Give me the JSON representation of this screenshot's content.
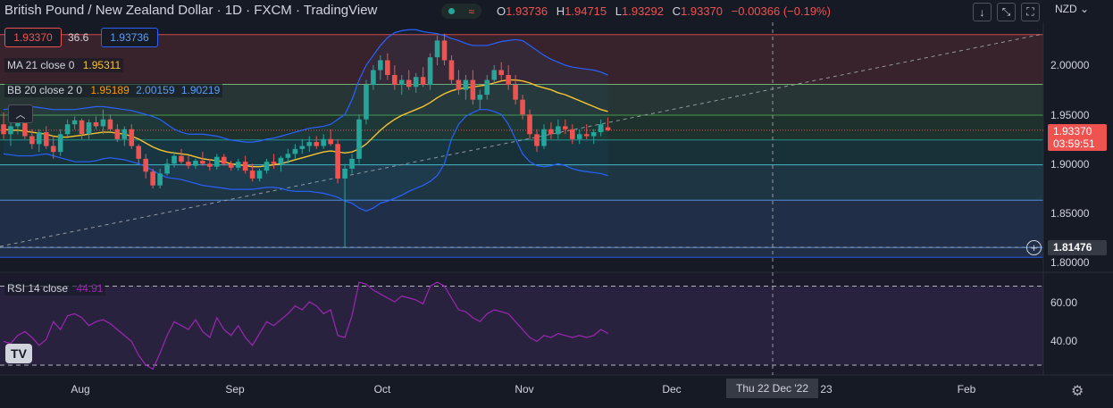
{
  "header": {
    "title": "British Pound / New Zealand Dollar · 1D · FXCM · TradingView",
    "ohlc": {
      "o_label": "O",
      "o": "1.93736",
      "h_label": "H",
      "h": "1.94715",
      "l_label": "L",
      "l": "1.93292",
      "c_label": "C",
      "c": "1.93370",
      "change": "−0.00366 (−0.19%)"
    },
    "currency": "NZD",
    "status_icons": [
      "market-open-dot-icon",
      "wave-icon"
    ],
    "toolbar_icons": [
      "arrow-down-icon",
      "collapse-icon",
      "fullscreen-icon"
    ]
  },
  "quote": {
    "sell": "1.93370",
    "spread": "36.6",
    "buy": "1.93736"
  },
  "indicators": {
    "ma": {
      "label": "MA 21 close 0",
      "value": "1.95311"
    },
    "bb": {
      "label": "BB 20 close 2 0",
      "basis": "1.95189",
      "upper": "2.00159",
      "lower": "1.90219"
    },
    "rsi": {
      "label": "RSI 14 close",
      "value": "44.91"
    }
  },
  "price_axis": [
    "2.00000",
    "1.95000",
    "1.90000",
    "1.85000",
    "1.80000"
  ],
  "rsi_axis": [
    "60.00",
    "40.00"
  ],
  "price_tags": {
    "last": "1.93370",
    "countdown": "03:59:51",
    "crosshair": "1.81476"
  },
  "time_axis": [
    "Aug",
    "Sep",
    "Oct",
    "Nov",
    "Dec",
    "23",
    "Feb"
  ],
  "crosshair_date": "Thu 22 Dec '22",
  "logo_text": "TV",
  "colors": {
    "up": "#26a69a",
    "down": "#ef5350",
    "ma": "#f5c433",
    "bb_band": "#2962ff",
    "rsi": "#9c27b0",
    "background": "#161a25"
  },
  "chart_data": {
    "type": "candlestick",
    "title": "British Pound / New Zealand Dollar",
    "ylim": [
      1.79,
      2.04
    ],
    "candles": [
      [
        1.94,
        1.952,
        1.925,
        1.93
      ],
      [
        1.93,
        1.945,
        1.918,
        1.938
      ],
      [
        1.938,
        1.948,
        1.93,
        1.942
      ],
      [
        1.942,
        1.95,
        1.925,
        1.928
      ],
      [
        1.928,
        1.935,
        1.915,
        1.92
      ],
      [
        1.92,
        1.935,
        1.912,
        1.932
      ],
      [
        1.932,
        1.938,
        1.915,
        1.918
      ],
      [
        1.918,
        1.928,
        1.905,
        1.912
      ],
      [
        1.912,
        1.935,
        1.908,
        1.93
      ],
      [
        1.93,
        1.945,
        1.928,
        1.94
      ],
      [
        1.94,
        1.948,
        1.935,
        1.944
      ],
      [
        1.944,
        1.946,
        1.925,
        1.93
      ],
      [
        1.93,
        1.945,
        1.925,
        1.942
      ],
      [
        1.942,
        1.948,
        1.935,
        1.938
      ],
      [
        1.938,
        1.955,
        1.93,
        1.945
      ],
      [
        1.945,
        1.95,
        1.932,
        1.935
      ],
      [
        1.935,
        1.94,
        1.922,
        1.925
      ],
      [
        1.925,
        1.938,
        1.918,
        1.935
      ],
      [
        1.935,
        1.94,
        1.915,
        1.918
      ],
      [
        1.918,
        1.92,
        1.9,
        1.905
      ],
      [
        1.905,
        1.91,
        1.885,
        1.892
      ],
      [
        1.892,
        1.895,
        1.875,
        1.878
      ],
      [
        1.878,
        1.895,
        1.875,
        1.89
      ],
      [
        1.89,
        1.905,
        1.888,
        1.9
      ],
      [
        1.9,
        1.912,
        1.896,
        1.908
      ],
      [
        1.908,
        1.915,
        1.9,
        1.902
      ],
      [
        1.902,
        1.908,
        1.895,
        1.898
      ],
      [
        1.898,
        1.905,
        1.895,
        1.903
      ],
      [
        1.903,
        1.912,
        1.898,
        1.9
      ],
      [
        1.9,
        1.905,
        1.893,
        1.897
      ],
      [
        1.897,
        1.91,
        1.894,
        1.907
      ],
      [
        1.907,
        1.91,
        1.898,
        1.9
      ],
      [
        1.9,
        1.903,
        1.893,
        1.896
      ],
      [
        1.896,
        1.905,
        1.893,
        1.902
      ],
      [
        1.902,
        1.908,
        1.89,
        1.893
      ],
      [
        1.893,
        1.9,
        1.882,
        1.885
      ],
      [
        1.885,
        1.895,
        1.882,
        1.893
      ],
      [
        1.893,
        1.905,
        1.89,
        1.902
      ],
      [
        1.902,
        1.91,
        1.895,
        1.9
      ],
      [
        1.9,
        1.908,
        1.892,
        1.906
      ],
      [
        1.906,
        1.915,
        1.9,
        1.91
      ],
      [
        1.91,
        1.92,
        1.905,
        1.915
      ],
      [
        1.915,
        1.925,
        1.91,
        1.918
      ],
      [
        1.918,
        1.928,
        1.912,
        1.922
      ],
      [
        1.922,
        1.928,
        1.915,
        1.918
      ],
      [
        1.918,
        1.93,
        1.915,
        1.925
      ],
      [
        1.925,
        1.935,
        1.918,
        1.92
      ],
      [
        1.92,
        1.925,
        1.88,
        1.885
      ],
      [
        1.885,
        1.9,
        1.815,
        1.895
      ],
      [
        1.895,
        1.91,
        1.89,
        1.905
      ],
      [
        1.905,
        1.95,
        1.9,
        1.945
      ],
      [
        1.945,
        1.985,
        1.94,
        1.98
      ],
      [
        1.98,
        2.0,
        1.975,
        1.995
      ],
      [
        1.995,
        2.01,
        1.985,
        2.005
      ],
      [
        2.005,
        2.012,
        1.985,
        1.99
      ],
      [
        1.99,
        2.0,
        1.975,
        1.98
      ],
      [
        1.98,
        1.99,
        1.97,
        1.985
      ],
      [
        1.985,
        1.995,
        1.975,
        1.978
      ],
      [
        1.978,
        1.992,
        1.972,
        1.988
      ],
      [
        1.988,
        1.998,
        1.978,
        1.98
      ],
      [
        1.98,
        2.012,
        1.975,
        2.008
      ],
      [
        2.008,
        2.03,
        2.0,
        2.025
      ],
      [
        2.025,
        2.032,
        2.0,
        2.005
      ],
      [
        2.005,
        2.01,
        1.98,
        1.985
      ],
      [
        1.985,
        1.995,
        1.97,
        1.975
      ],
      [
        1.975,
        1.99,
        1.965,
        1.985
      ],
      [
        1.985,
        1.995,
        1.96,
        1.965
      ],
      [
        1.965,
        1.975,
        1.955,
        1.97
      ],
      [
        1.97,
        1.99,
        1.965,
        1.985
      ],
      [
        1.985,
        2.0,
        1.98,
        1.995
      ],
      [
        1.995,
        2.003,
        1.985,
        1.99
      ],
      [
        1.99,
        2.0,
        1.975,
        1.98
      ],
      [
        1.98,
        1.99,
        1.96,
        1.965
      ],
      [
        1.965,
        1.97,
        1.945,
        1.95
      ],
      [
        1.95,
        1.955,
        1.925,
        1.93
      ],
      [
        1.93,
        1.935,
        1.912,
        1.918
      ],
      [
        1.918,
        1.94,
        1.915,
        1.935
      ],
      [
        1.935,
        1.942,
        1.925,
        1.93
      ],
      [
        1.93,
        1.945,
        1.925,
        1.938
      ],
      [
        1.938,
        1.945,
        1.93,
        1.935
      ],
      [
        1.935,
        1.94,
        1.92,
        1.925
      ],
      [
        1.925,
        1.935,
        1.92,
        1.93
      ],
      [
        1.93,
        1.94,
        1.925,
        1.928
      ],
      [
        1.928,
        1.935,
        1.92,
        1.932
      ],
      [
        1.932,
        1.945,
        1.928,
        1.94
      ],
      [
        1.937,
        1.947,
        1.933,
        1.934
      ]
    ],
    "ma": [
      1.935,
      1.934,
      1.934,
      1.933,
      1.932,
      1.931,
      1.93,
      1.928,
      1.927,
      1.927,
      1.928,
      1.929,
      1.93,
      1.931,
      1.932,
      1.932,
      1.931,
      1.93,
      1.928,
      1.925,
      1.921,
      1.917,
      1.914,
      1.912,
      1.911,
      1.91,
      1.909,
      1.907,
      1.905,
      1.904,
      1.903,
      1.902,
      1.9,
      1.899,
      1.898,
      1.897,
      1.897,
      1.898,
      1.899,
      1.9,
      1.902,
      1.904,
      1.906,
      1.908,
      1.91,
      1.912,
      1.913,
      1.912,
      1.911,
      1.912,
      1.915,
      1.92,
      1.927,
      1.934,
      1.94,
      1.945,
      1.949,
      1.952,
      1.955,
      1.958,
      1.962,
      1.967,
      1.971,
      1.974,
      1.976,
      1.977,
      1.978,
      1.979,
      1.98,
      1.982,
      1.984,
      1.985,
      1.985,
      1.984,
      1.982,
      1.979,
      1.977,
      1.975,
      1.972,
      1.97,
      1.967,
      1.964,
      1.961,
      1.958,
      1.955,
      1.953
    ],
    "bb_upper": [
      1.955,
      1.956,
      1.957,
      1.958,
      1.958,
      1.957,
      1.956,
      1.955,
      1.955,
      1.955,
      1.955,
      1.956,
      1.957,
      1.958,
      1.958,
      1.957,
      1.956,
      1.955,
      1.954,
      1.952,
      1.95,
      1.948,
      1.945,
      1.94,
      1.935,
      1.932,
      1.93,
      1.93,
      1.93,
      1.929,
      1.928,
      1.926,
      1.924,
      1.923,
      1.922,
      1.922,
      1.923,
      1.925,
      1.926,
      1.928,
      1.93,
      1.932,
      1.934,
      1.936,
      1.937,
      1.938,
      1.94,
      1.945,
      1.95,
      1.965,
      1.985,
      2.0,
      2.01,
      2.02,
      2.028,
      2.033,
      2.035,
      2.036,
      2.036,
      2.034,
      2.033,
      2.032,
      2.03,
      2.027,
      2.025,
      2.022,
      2.02,
      2.02,
      2.02,
      2.022,
      2.024,
      2.025,
      2.026,
      2.025,
      2.02,
      2.015,
      2.01,
      2.006,
      2.003,
      2.0,
      1.998,
      1.997,
      1.996,
      1.995,
      1.993,
      1.99
    ],
    "bb_lower": [
      1.91,
      1.909,
      1.908,
      1.908,
      1.908,
      1.909,
      1.91,
      1.908,
      1.906,
      1.904,
      1.902,
      1.902,
      1.902,
      1.903,
      1.905,
      1.906,
      1.905,
      1.904,
      1.902,
      1.9,
      1.897,
      1.893,
      1.889,
      1.886,
      1.885,
      1.884,
      1.882,
      1.88,
      1.878,
      1.877,
      1.876,
      1.875,
      1.874,
      1.874,
      1.874,
      1.874,
      1.875,
      1.876,
      1.876,
      1.875,
      1.873,
      1.872,
      1.872,
      1.872,
      1.871,
      1.87,
      1.868,
      1.866,
      1.862,
      1.86,
      1.855,
      1.852,
      1.855,
      1.86,
      1.862,
      1.865,
      1.868,
      1.872,
      1.875,
      1.878,
      1.882,
      1.888,
      1.9,
      1.925,
      1.94,
      1.948,
      1.952,
      1.955,
      1.955,
      1.953,
      1.95,
      1.94,
      1.925,
      1.91,
      1.902,
      1.898,
      1.897,
      1.898,
      1.9,
      1.898,
      1.895,
      1.893,
      1.892,
      1.891,
      1.89,
      1.888
    ],
    "rsi": [
      42,
      41,
      45,
      47,
      44,
      40,
      43,
      52,
      48,
      55,
      56,
      54,
      50,
      52,
      53,
      51,
      48,
      45,
      42,
      35,
      30,
      28,
      36,
      45,
      52,
      50,
      48,
      53,
      47,
      44,
      54,
      48,
      45,
      50,
      44,
      40,
      46,
      52,
      50,
      53,
      56,
      60,
      58,
      62,
      60,
      56,
      58,
      45,
      44,
      55,
      72,
      71,
      68,
      66,
      64,
      62,
      65,
      64,
      63,
      61,
      70,
      72,
      70,
      64,
      58,
      57,
      54,
      52,
      56,
      58,
      57,
      56,
      52,
      48,
      44,
      42,
      45,
      44,
      46,
      45,
      44,
      45,
      44,
      45,
      48,
      46
    ],
    "rsi_ylim": [
      25,
      77
    ],
    "rsi_levels": [
      70,
      30
    ],
    "fib_levels": [
      2.031,
      1.9805,
      1.9493,
      1.9241,
      1.8989,
      1.863,
      1.815,
      1.805
    ],
    "fib_colors": [
      "#ef5350",
      "#81c784",
      "#4caf50",
      "#26a69a",
      "#4dd0e1",
      "#5b9cf6",
      "#5b9cf6",
      "#2962ff"
    ]
  }
}
